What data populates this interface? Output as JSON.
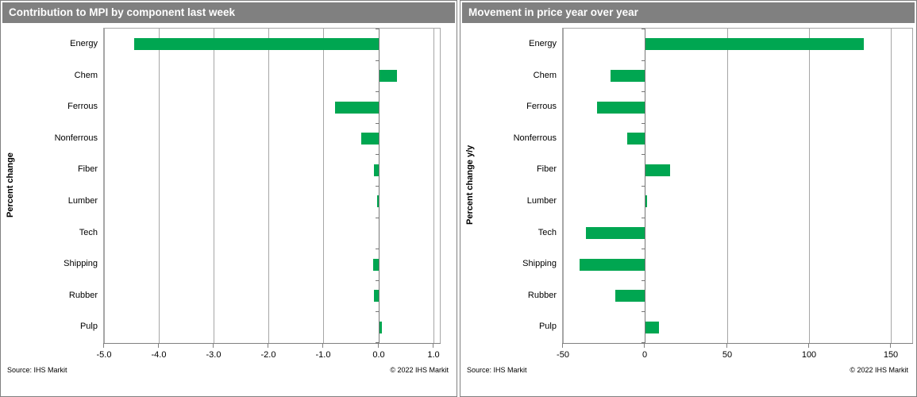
{
  "colors": {
    "bar_green": "#00a651",
    "header_bg": "#808080",
    "header_text": "#ffffff",
    "gridline": "#a6a6a6",
    "axis": "#777777",
    "text": "#000000"
  },
  "chart_data": [
    {
      "type": "bar",
      "orientation": "horizontal",
      "title": "Contribution to MPI by component last week",
      "ylabel": "Percent change",
      "xlabel": "",
      "legend": "none",
      "grid": "vertical",
      "bar_color": "#00a651",
      "categories": [
        "Energy",
        "Chem",
        "Ferrous",
        "Nonferrous",
        "Fiber",
        "Lumber",
        "Tech",
        "Shipping",
        "Rubber",
        "Pulp"
      ],
      "values": [
        -4.45,
        0.33,
        -0.79,
        -0.31,
        -0.08,
        -0.03,
        0.0,
        -0.1,
        -0.08,
        0.05
      ],
      "xlim": [
        -5,
        1.12
      ],
      "xticks": [
        {
          "value": -5,
          "label": "-5.0"
        },
        {
          "value": -4,
          "label": "-4.0"
        },
        {
          "value": -3,
          "label": "-3.0"
        },
        {
          "value": -2,
          "label": "-2.0"
        },
        {
          "value": -1,
          "label": "-1.0"
        },
        {
          "value": 0,
          "label": "0.0"
        },
        {
          "value": 1,
          "label": "1.0"
        }
      ],
      "source": "Source:  IHS Markit",
      "copyright": "© 2022  IHS Markit"
    },
    {
      "type": "bar",
      "orientation": "horizontal",
      "title": "Movement in price year over year",
      "ylabel": "Percent change y/y",
      "xlabel": "",
      "legend": "none",
      "grid": "vertical",
      "bar_color": "#00a651",
      "categories": [
        "Energy",
        "Chem",
        "Ferrous",
        "Nonferrous",
        "Fiber",
        "Lumber",
        "Tech",
        "Shipping",
        "Rubber",
        "Pulp"
      ],
      "values": [
        133,
        -21,
        -29,
        -11,
        15,
        1,
        -36,
        -40,
        -18,
        8
      ],
      "xlim": [
        -50,
        163
      ],
      "xticks": [
        {
          "value": -50,
          "label": "-50"
        },
        {
          "value": 0,
          "label": "0"
        },
        {
          "value": 50,
          "label": "50"
        },
        {
          "value": 100,
          "label": "100"
        },
        {
          "value": 150,
          "label": "150"
        }
      ],
      "source": "Source:  IHS Markit",
      "copyright": "© 2022  IHS Markit"
    }
  ]
}
